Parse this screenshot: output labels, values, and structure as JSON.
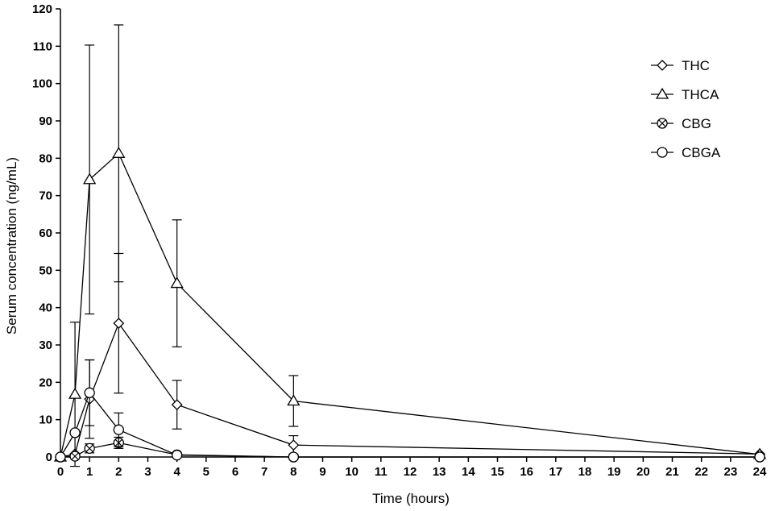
{
  "chart_data": {
    "type": "line",
    "title": "",
    "xlabel": "Time  (hours)",
    "ylabel": "Serum concentration (ng/mL)",
    "xlim": [
      0,
      24
    ],
    "ylim": [
      0,
      120
    ],
    "xticks": [
      0,
      1,
      2,
      3,
      4,
      5,
      6,
      7,
      8,
      9,
      10,
      11,
      12,
      13,
      14,
      15,
      16,
      17,
      18,
      19,
      20,
      21,
      22,
      23,
      24
    ],
    "yticks": [
      0,
      10,
      20,
      30,
      40,
      50,
      60,
      70,
      80,
      90,
      100,
      110,
      120
    ],
    "grid": false,
    "legend_position": "top-right",
    "series": [
      {
        "name": "THC",
        "marker": "diamond",
        "x": [
          0,
          0.5,
          1,
          2,
          4,
          8,
          24
        ],
        "y": [
          0,
          0.8,
          15.5,
          35.8,
          14,
          3.2,
          0.8
        ],
        "err": [
          0,
          0,
          10.5,
          18.7,
          6.5,
          2.5,
          0
        ]
      },
      {
        "name": "THCA",
        "marker": "triangle",
        "x": [
          0,
          0.5,
          1,
          2,
          4,
          8,
          24
        ],
        "y": [
          0,
          16.8,
          74.3,
          81.3,
          46.5,
          15,
          0.7
        ],
        "err": [
          0,
          19.3,
          36,
          34.4,
          17,
          6.8,
          0
        ]
      },
      {
        "name": "CBG",
        "marker": "circle-x",
        "x": [
          0,
          0.5,
          1,
          2,
          4,
          8,
          24
        ],
        "y": [
          0,
          0.2,
          2.3,
          3.8,
          0.6,
          0,
          0
        ],
        "err": [
          0,
          0,
          1.2,
          1.5,
          0,
          0,
          0
        ]
      },
      {
        "name": "CBGA",
        "marker": "circle",
        "x": [
          0,
          0.5,
          1,
          2,
          4,
          8,
          24
        ],
        "y": [
          0,
          6.5,
          17.2,
          7.3,
          0.5,
          0,
          0
        ],
        "err": [
          0,
          0,
          8.8,
          4.5,
          0,
          0,
          0
        ]
      }
    ]
  }
}
